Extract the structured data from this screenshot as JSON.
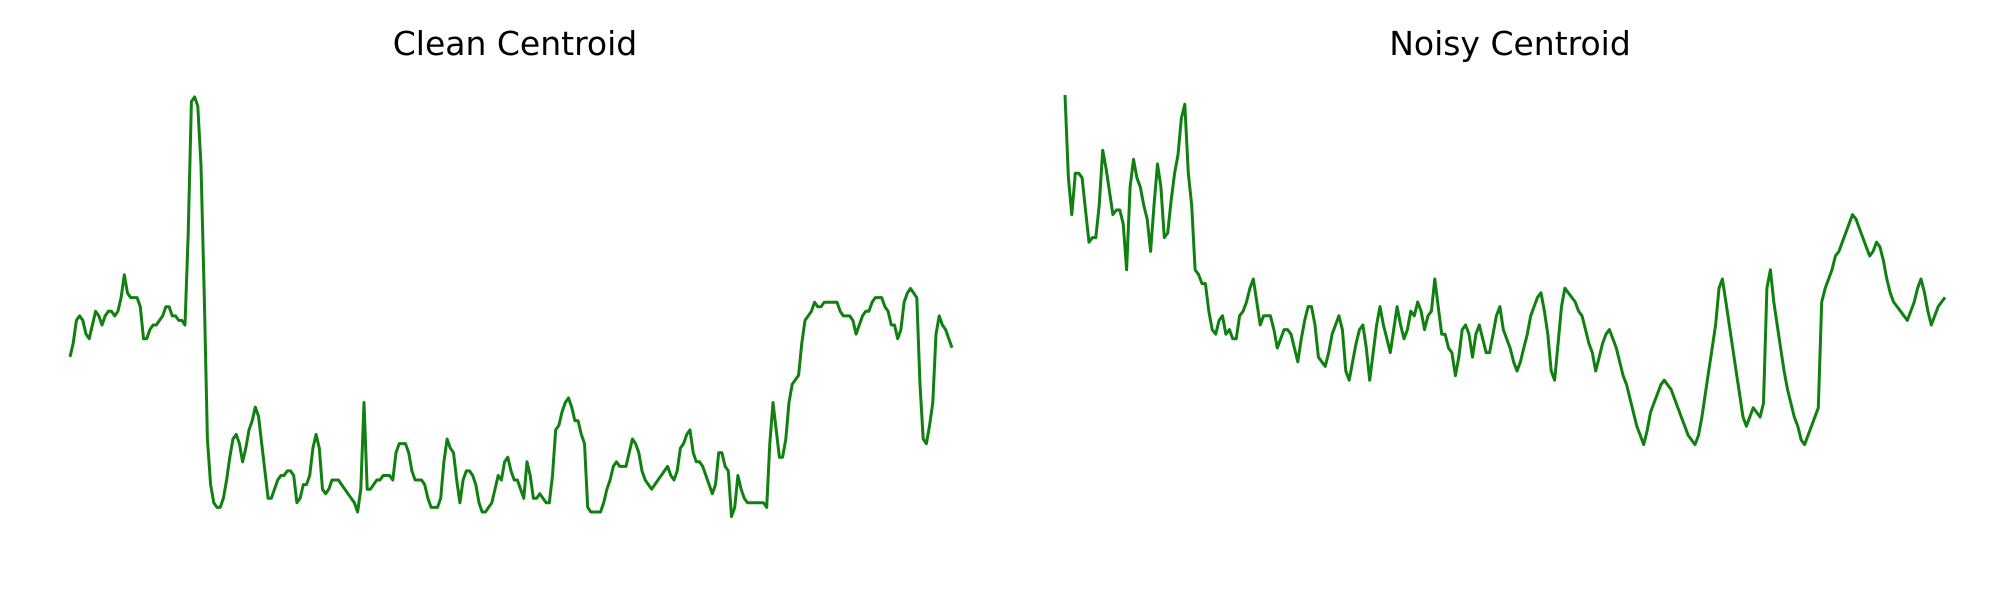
{
  "chart_data": [
    {
      "type": "line",
      "title": "Clean Centroid",
      "xlabel": "",
      "ylabel": "",
      "axes_visible": false,
      "grid": false,
      "color": "#108010",
      "ylim": [
        0,
        100
      ],
      "values": [
        43,
        46,
        51,
        52,
        51,
        48,
        47,
        50,
        53,
        52,
        50,
        52,
        53,
        53,
        52,
        53,
        56,
        61,
        57,
        56,
        56,
        56,
        54,
        47,
        47,
        49,
        50,
        50,
        51,
        52,
        54,
        54,
        52,
        52,
        51,
        51,
        50,
        70,
        99,
        100,
        98,
        85,
        57,
        25,
        15,
        11,
        10,
        10,
        12,
        16,
        21,
        25,
        26,
        24,
        20,
        23,
        27,
        29,
        32,
        30,
        24,
        18,
        12,
        12,
        14,
        16,
        17,
        17,
        18,
        18,
        17,
        11,
        12,
        15,
        15,
        17,
        23,
        26,
        23,
        14,
        13,
        14,
        16,
        16,
        16,
        15,
        14,
        13,
        12,
        11,
        9,
        14,
        33,
        14,
        14,
        15,
        16,
        16,
        17,
        17,
        17,
        16,
        22,
        24,
        24,
        24,
        22,
        18,
        16,
        16,
        16,
        15,
        12,
        10,
        10,
        10,
        12,
        20,
        25,
        23,
        22,
        16,
        11,
        16,
        18,
        18,
        17,
        15,
        11,
        9,
        9,
        10,
        11,
        14,
        17,
        16,
        20,
        21,
        18,
        16,
        16,
        14,
        12,
        20,
        17,
        12,
        12,
        13,
        12,
        11,
        11,
        17,
        27,
        28,
        31,
        33,
        34,
        32,
        29,
        29,
        26,
        24,
        10,
        9,
        9,
        9,
        9,
        11,
        14,
        16,
        19,
        20,
        19,
        19,
        19,
        22,
        25,
        24,
        22,
        18,
        16,
        15,
        14,
        15,
        16,
        17,
        18,
        19,
        17,
        16,
        18,
        23,
        24,
        26,
        27,
        22,
        20,
        20,
        19,
        17,
        15,
        13,
        15,
        22,
        22,
        19,
        18,
        8,
        10,
        17,
        14,
        12,
        11,
        11,
        11,
        11,
        11,
        11,
        10,
        24,
        33,
        27,
        21,
        21,
        25,
        33,
        37,
        38,
        39,
        46,
        51,
        52,
        53,
        55,
        54,
        54,
        55,
        55,
        55,
        55,
        55,
        53,
        52,
        52,
        52,
        51,
        48,
        50,
        52,
        53,
        53,
        55,
        56,
        56,
        56,
        54,
        53,
        50,
        50,
        47,
        49,
        55,
        57,
        58,
        57,
        56,
        37,
        25,
        24,
        28,
        33,
        48,
        52,
        50,
        49,
        47,
        45
      ]
    },
    {
      "type": "line",
      "title": "Noisy Centroid",
      "xlabel": "",
      "ylabel": "",
      "axes_visible": false,
      "grid": false,
      "color": "#108010",
      "ylim": [
        0,
        100
      ],
      "values": [
        100,
        82,
        74,
        83,
        83,
        82,
        75,
        68,
        69,
        69,
        76,
        88,
        84,
        79,
        74,
        75,
        75,
        72,
        62,
        80,
        86,
        82,
        80,
        76,
        73,
        66,
        76,
        85,
        80,
        69,
        70,
        77,
        83,
        87,
        95,
        98,
        83,
        76,
        62,
        61,
        59,
        59,
        53,
        49,
        48,
        51,
        52,
        48,
        49,
        47,
        47,
        52,
        53,
        55,
        58,
        60,
        55,
        50,
        52,
        52,
        52,
        49,
        45,
        47,
        49,
        49,
        48,
        45,
        42,
        47,
        51,
        54,
        54,
        50,
        43,
        42,
        41,
        44,
        48,
        50,
        52,
        49,
        40,
        38,
        42,
        46,
        49,
        50,
        45,
        38,
        44,
        50,
        54,
        50,
        47,
        44,
        49,
        54,
        50,
        47,
        49,
        53,
        52,
        55,
        53,
        49,
        52,
        53,
        60,
        54,
        48,
        48,
        45,
        44,
        39,
        43,
        49,
        50,
        48,
        43,
        48,
        50,
        47,
        44,
        44,
        48,
        52,
        54,
        49,
        47,
        45,
        42,
        40,
        42,
        45,
        48,
        52,
        54,
        56,
        57,
        53,
        48,
        40,
        38,
        46,
        54,
        58,
        57,
        56,
        55,
        53,
        52,
        49,
        46,
        44,
        40,
        43,
        46,
        48,
        49,
        47,
        45,
        42,
        39,
        37,
        34,
        31,
        28,
        26,
        24,
        27,
        31,
        33,
        35,
        37,
        38,
        37,
        36,
        34,
        32,
        30,
        28,
        26,
        25,
        24,
        26,
        30,
        35,
        40,
        45,
        50,
        58,
        60,
        55,
        50,
        45,
        40,
        35,
        30,
        28,
        30,
        32,
        31,
        30,
        33,
        58,
        62,
        55,
        50,
        45,
        40,
        36,
        33,
        30,
        28,
        25,
        24,
        26,
        28,
        30,
        32,
        55,
        58,
        60,
        62,
        65,
        66,
        68,
        70,
        72,
        74,
        73,
        71,
        69,
        67,
        65,
        66,
        68,
        67,
        64,
        60,
        57,
        55,
        54,
        53,
        52,
        51,
        53,
        55,
        58,
        60,
        57,
        53,
        50,
        52,
        54,
        55,
        56
      ]
    }
  ]
}
